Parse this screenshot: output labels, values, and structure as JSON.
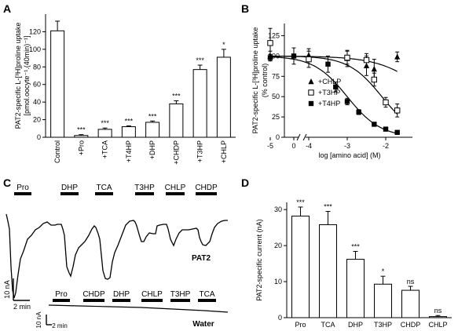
{
  "colors": {
    "ink": "#000000",
    "background": "#ffffff"
  },
  "chart_data": [
    {
      "panel": "A",
      "type": "bar",
      "categories": [
        "Control",
        "+Pro",
        "+TCA",
        "+T4HP",
        "+DHP",
        "+CHDP",
        "+T3HP",
        "+CHLP"
      ],
      "values": [
        121,
        2,
        9,
        12,
        17,
        38,
        77,
        91
      ],
      "errors": [
        11,
        1,
        1.5,
        1,
        1.5,
        3.5,
        5,
        9
      ],
      "significance": [
        "",
        "***",
        "***",
        "***",
        "***",
        "***",
        "***",
        "*"
      ],
      "ylabel_lines": [
        "PAT2-specific L-[³H]proline uptake",
        "[pmol.oocyte⁻¹.(40min)⁻¹]"
      ],
      "ylim": [
        0,
        140
      ],
      "yticks": [
        "0",
        "20",
        "40",
        "60",
        "80",
        "100",
        "120"
      ]
    },
    {
      "panel": "B",
      "type": "scatter",
      "xlabel": "log [amino acid] (M)",
      "ylabel_lines": [
        "PAT2-specific L-[³H]proline uptake",
        "(% control)"
      ],
      "ylim": [
        0,
        140
      ],
      "yticks": [
        "0",
        "25",
        "50",
        "75",
        "100",
        "125"
      ],
      "xticks": [
        "0",
        "-5",
        "-4",
        "-3",
        "-2"
      ],
      "legend": [
        "+CHLP",
        "+T3HP",
        "+T4HP"
      ],
      "series": [
        {
          "name": "+CHLP",
          "marker": "filled-triangle",
          "x": [
            -5,
            -4,
            -3,
            -2.5,
            -2.3,
            -1.7
          ],
          "y": [
            100,
            101,
            97,
            88,
            84,
            99
          ],
          "err": [
            6,
            8,
            10,
            12,
            12,
            6
          ]
        },
        {
          "name": "+T3HP",
          "marker": "open-square",
          "x": [
            -5,
            -4,
            -3,
            -2.5,
            -2.3,
            -2,
            -1.7
          ],
          "y": [
            116,
            96,
            98,
            95,
            71,
            43,
            33
          ],
          "err": [
            18,
            10,
            8,
            8,
            8,
            6,
            8
          ]
        },
        {
          "name": "+T4HP",
          "marker": "filled-square",
          "x": [
            -5,
            -3.5,
            -3.3,
            -3,
            -2.7,
            -2.3,
            -2,
            -1.7
          ],
          "y": [
            98,
            90,
            62,
            44,
            31,
            16,
            10,
            6
          ],
          "err": [
            4,
            10,
            6,
            4,
            3,
            2,
            2,
            1
          ]
        }
      ],
      "control": {
        "x": 0,
        "y": 100,
        "err": 10
      }
    },
    {
      "panel": "C",
      "type": "line",
      "trace_label": "PAT2",
      "water_label": "Water",
      "pat2_applications": [
        "Pro",
        "DHP",
        "TCA",
        "T3HP",
        "CHLP",
        "CHDP"
      ],
      "water_applications": [
        "Pro",
        "CHDP",
        "DHP",
        "CHLP",
        "T3HP",
        "TCA"
      ],
      "pat2_scale": {
        "current": "10 nA",
        "time": "2 min"
      },
      "water_scale": {
        "current": "10 nA",
        "time": "2 min"
      }
    },
    {
      "panel": "D",
      "type": "bar",
      "categories": [
        "Pro",
        "TCA",
        "DHP",
        "T3HP",
        "CHDP",
        "CHLP"
      ],
      "values": [
        28.2,
        25.8,
        16.2,
        9.3,
        7.6,
        0.3
      ],
      "errors": [
        2.5,
        3.7,
        2.2,
        2.2,
        1.1,
        0.3
      ],
      "significance": [
        "***",
        "***",
        "***",
        "*",
        "ns",
        "ns"
      ],
      "ylabel": "PAT2-specific current (nA)",
      "ylim": [
        0,
        32
      ],
      "yticks": [
        "0",
        "10",
        "20",
        "30"
      ]
    }
  ]
}
